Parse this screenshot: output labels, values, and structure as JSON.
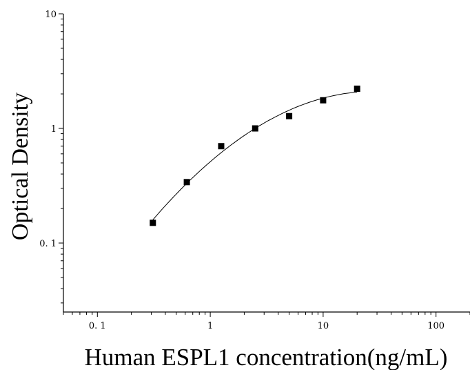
{
  "chart_data": {
    "type": "scatter",
    "title": "",
    "xlabel": "Human ESPL1 concentration(ng/mL)",
    "ylabel": "Optical Density",
    "x_scale": "log",
    "y_scale": "log",
    "xlim": [
      0.05,
      200
    ],
    "ylim": [
      0.025,
      10
    ],
    "x_ticks": [
      0.1,
      1,
      10,
      100
    ],
    "x_tick_labels": [
      "0. 1",
      "1",
      "10",
      "100"
    ],
    "y_ticks": [
      0.1,
      1,
      10
    ],
    "y_tick_labels": [
      "0. 1",
      "1",
      "10"
    ],
    "grid": false,
    "legend": "none",
    "series": [
      {
        "x": [
          0.31,
          0.62,
          1.25,
          2.5,
          5,
          10,
          20
        ],
        "y": [
          0.15,
          0.34,
          0.7,
          1.0,
          1.28,
          1.76,
          2.22
        ],
        "marker": "square",
        "fit_line": true
      }
    ]
  }
}
